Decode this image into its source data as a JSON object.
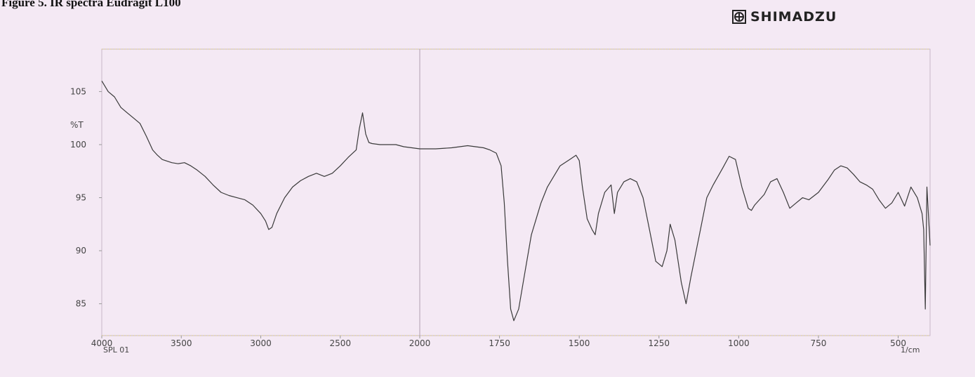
{
  "figure": {
    "caption": "Figure 5. IR spectra Eudragit L100",
    "brand": "SHIMADZU",
    "brand_icon": "shimadzu-logo-icon"
  },
  "chart_data": {
    "type": "line",
    "title": "",
    "xlabel": "1/cm",
    "ylabel": "%T",
    "sample_label": "SPL 01",
    "xlim": [
      4000,
      400
    ],
    "ylim": [
      82,
      109
    ],
    "x_ticks": [
      4000,
      3500,
      3000,
      2500,
      2000,
      1750,
      1500,
      1250,
      1000,
      750,
      500
    ],
    "y_ticks": [
      85,
      90,
      95,
      100,
      105
    ],
    "line_color": "#3a3a3a",
    "series": [
      {
        "x": [
          4000,
          3960,
          3920,
          3880,
          3840,
          3800,
          3760,
          3720,
          3680,
          3650,
          3620,
          3600,
          3560,
          3520,
          3480,
          3440,
          3400,
          3350,
          3300,
          3250,
          3200,
          3150,
          3100,
          3050,
          3000,
          2970,
          2950,
          2930,
          2900,
          2850,
          2800,
          2750,
          2700,
          2650,
          2600,
          2550,
          2500,
          2450,
          2400,
          2380,
          2360,
          2340,
          2320,
          2300,
          2250,
          2200,
          2150,
          2100,
          2050,
          2000,
          1950,
          1900,
          1850,
          1800,
          1780,
          1760,
          1745,
          1735,
          1725,
          1715,
          1705,
          1690,
          1670,
          1650,
          1620,
          1600,
          1560,
          1530,
          1510,
          1500,
          1490,
          1475,
          1460,
          1450,
          1440,
          1420,
          1400,
          1390,
          1380,
          1360,
          1340,
          1320,
          1300,
          1280,
          1260,
          1240,
          1225,
          1215,
          1200,
          1180,
          1165,
          1150,
          1120,
          1100,
          1080,
          1050,
          1030,
          1010,
          990,
          970,
          960,
          950,
          920,
          900,
          880,
          860,
          840,
          820,
          800,
          780,
          750,
          720,
          700,
          680,
          660,
          640,
          620,
          600,
          580,
          560,
          540,
          520,
          500,
          480,
          460,
          440,
          425,
          420,
          415,
          410,
          400
        ],
        "y": [
          106,
          105,
          104.5,
          103.5,
          103,
          102.5,
          102,
          100.8,
          99.5,
          99,
          98.6,
          98.5,
          98.3,
          98.2,
          98.3,
          98,
          97.6,
          97,
          96.2,
          95.5,
          95.2,
          95,
          94.8,
          94.3,
          93.5,
          92.8,
          92,
          92.2,
          93.5,
          95,
          96,
          96.6,
          97,
          97.3,
          97,
          97.3,
          98,
          98.8,
          99.5,
          101.5,
          103,
          101,
          100.2,
          100.1,
          100,
          100,
          100,
          99.8,
          99.7,
          99.6,
          99.6,
          99.7,
          99.9,
          99.7,
          99.5,
          99.2,
          98,
          94.5,
          89,
          84.5,
          83.4,
          84.5,
          88,
          91.5,
          94.5,
          96,
          98,
          98.6,
          99,
          98.5,
          96,
          93,
          92,
          91.5,
          93.5,
          95.5,
          96.2,
          93.5,
          95.5,
          96.5,
          96.8,
          96.5,
          95,
          92,
          89,
          88.5,
          90,
          92.5,
          91,
          87,
          85,
          87.5,
          92,
          95,
          96.2,
          97.8,
          98.9,
          98.6,
          96,
          94,
          93.8,
          94.3,
          95.3,
          96.5,
          96.8,
          95.5,
          94,
          94.5,
          95,
          94.8,
          95.5,
          96.7,
          97.6,
          98,
          97.8,
          97.2,
          96.5,
          96.2,
          95.8,
          94.8,
          94,
          94.5,
          95.5,
          94.2,
          96,
          95,
          93.5,
          92,
          84.5,
          96,
          90.5
        ]
      }
    ]
  }
}
